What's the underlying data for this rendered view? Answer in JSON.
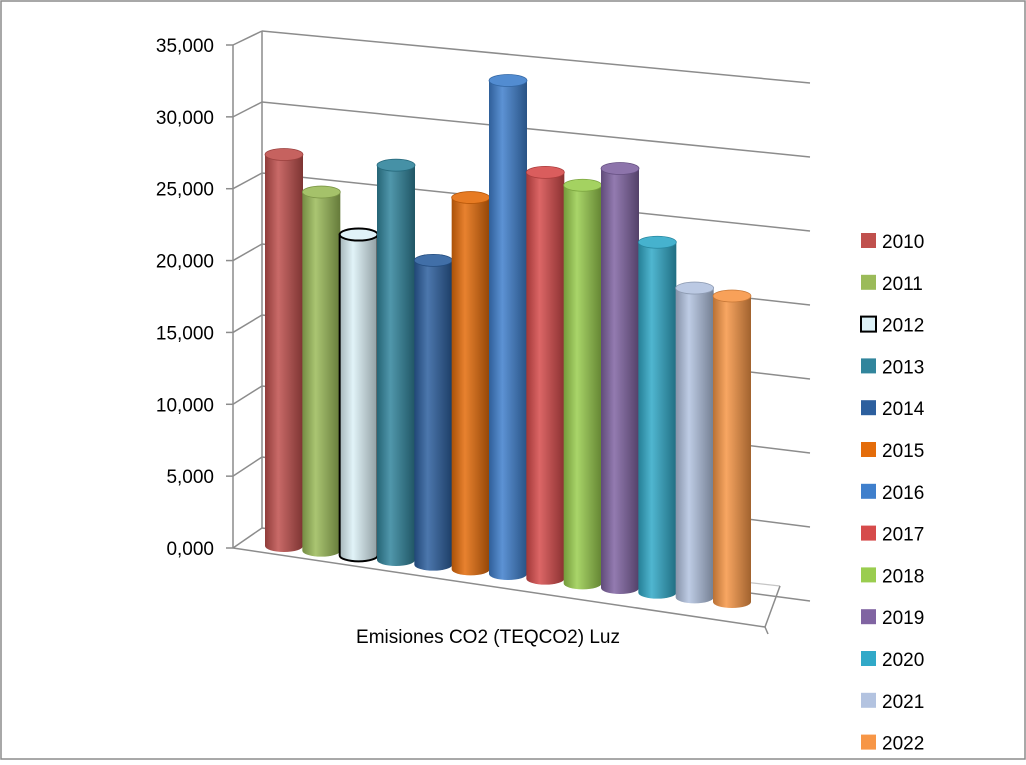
{
  "chart_data": {
    "type": "bar",
    "style": "3d-cylinder",
    "categories": [
      "Emisiones CO2 (TEQCO2) Luz"
    ],
    "xlabel": "Emisiones CO2 (TEQCO2) Luz",
    "ylabel": "",
    "title": "",
    "ylim": [
      0,
      35000
    ],
    "yticks": [
      "0,000",
      "5,000",
      "10,000",
      "15,000",
      "20,000",
      "25,000",
      "30,000",
      "35,000"
    ],
    "grid": true,
    "legend_position": "right",
    "series": [
      {
        "name": "2010",
        "values": [
          23800
        ],
        "color": "#c0504d"
      },
      {
        "name": "2011",
        "values": [
          21800
        ],
        "color": "#9bbb59"
      },
      {
        "name": "2012",
        "values": [
          19500
        ],
        "color": "#dcf1f7"
      },
      {
        "name": "2013",
        "values": [
          24000
        ],
        "color": "#31859c"
      },
      {
        "name": "2014",
        "values": [
          18500
        ],
        "color": "#2c5f9e"
      },
      {
        "name": "2015",
        "values": [
          22600
        ],
        "color": "#e46c0a"
      },
      {
        "name": "2016",
        "values": [
          30000
        ],
        "color": "#3f7fcc"
      },
      {
        "name": "2017",
        "values": [
          24700
        ],
        "color": "#d64b4b"
      },
      {
        "name": "2018",
        "values": [
          24200
        ],
        "color": "#9acd4f"
      },
      {
        "name": "2019",
        "values": [
          25500
        ],
        "color": "#8064a2"
      },
      {
        "name": "2020",
        "values": [
          21300
        ],
        "color": "#31a9c8"
      },
      {
        "name": "2021",
        "values": [
          18800
        ],
        "color": "#b3c3e0"
      },
      {
        "name": "2022",
        "values": [
          18600
        ],
        "color": "#f79646"
      }
    ]
  }
}
